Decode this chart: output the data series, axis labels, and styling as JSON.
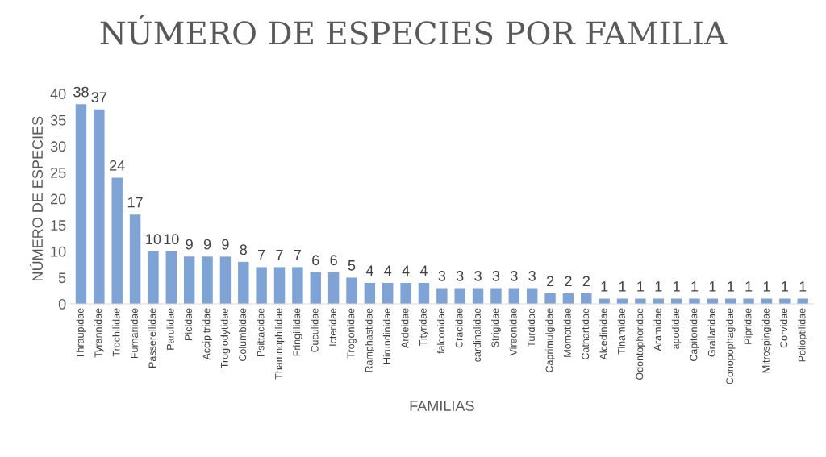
{
  "chart_data": {
    "type": "bar",
    "title": "NÚMERO DE ESPECIES POR FAMILIA",
    "xlabel": "FAMILIAS",
    "ylabel": "NÚMERO DE ESPECIES",
    "categories": [
      "Thraupidae",
      "Tyrannidae",
      "Trochilidae",
      "Furnariidae",
      "Passerellidae",
      "Parulidae",
      "Picidae",
      "Accipitridae",
      "Troglodytidae",
      "Columbidae",
      "Psittacidae",
      "Thamnophilidae",
      "Fringillidae",
      "Cuculidae",
      "Icteridae",
      "Trogonidae",
      "Ramphastidae",
      "Hirundinidae",
      "Ardeidae",
      "Tityridae",
      "falconidae",
      "Cracidae",
      "cardinalidae",
      "Strigidae",
      "Vireonidae",
      "Turdidae",
      "Caprimulgidae",
      "Momotidae",
      "Cathartidae",
      "Alcedinidae",
      "Tinamidae",
      "Odontophoridae",
      "Aramidae",
      "apodidae",
      "Capitonidae",
      "Grallaridae",
      "Conopophagidae",
      "Pipridae",
      "Mitrospingidae",
      "Corvidae",
      "Polioptilidae"
    ],
    "values": [
      38,
      37,
      24,
      17,
      10,
      10,
      9,
      9,
      9,
      8,
      7,
      7,
      7,
      6,
      6,
      5,
      4,
      4,
      4,
      4,
      3,
      3,
      3,
      3,
      3,
      3,
      2,
      2,
      2,
      1,
      1,
      1,
      1,
      1,
      1,
      1,
      1,
      1,
      1,
      1,
      1
    ],
    "color": "#7fa3d5",
    "ylim": [
      0,
      40
    ],
    "yticks": [
      0,
      5,
      10,
      15,
      20,
      25,
      30,
      35,
      40
    ],
    "grid": false,
    "data_labels": true
  }
}
